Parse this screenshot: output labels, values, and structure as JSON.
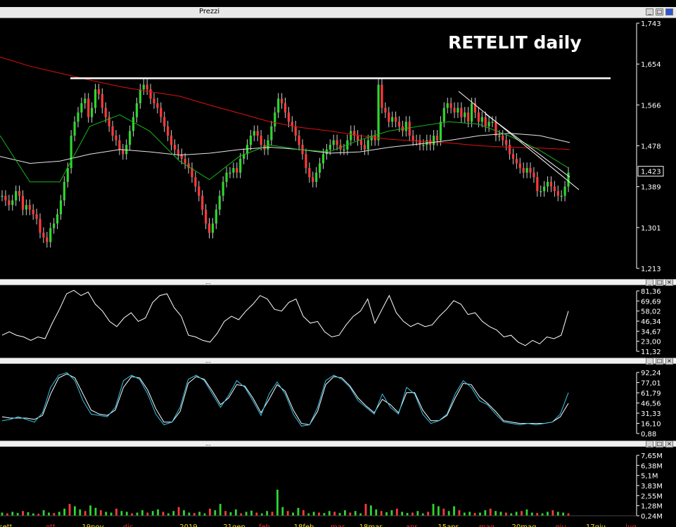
{
  "window": {
    "title": "Prezzi"
  },
  "chart_data": [
    {
      "type": "candlestick",
      "title": "RETELIT daily",
      "ylim": [
        1.213,
        1.743
      ],
      "yticks": [
        "1,743",
        "1,654",
        "1,566",
        "1,478",
        "1,389",
        "1,301",
        "1,213"
      ],
      "last_price": "1,423",
      "x_ticks": [
        "sett",
        "ott",
        "19nov",
        "dic",
        "2019",
        "21gen",
        "feb",
        "18feb",
        "mar",
        "18mar",
        "apr",
        "15apr",
        "mag",
        "20mag",
        "giu",
        "17giu",
        "lug"
      ],
      "x_ticks_red": [
        "ott",
        "dic",
        "feb",
        "mar",
        "apr",
        "mag",
        "giu",
        "lug"
      ],
      "resistance_line": 1.624,
      "series": [
        {
          "name": "close",
          "values": [
            1.37,
            1.36,
            1.35,
            1.36,
            1.38,
            1.37,
            1.34,
            1.35,
            1.34,
            1.33,
            1.32,
            1.29,
            1.28,
            1.27,
            1.3,
            1.31,
            1.33,
            1.36,
            1.4,
            1.43,
            1.5,
            1.53,
            1.55,
            1.57,
            1.58,
            1.54,
            1.56,
            1.6,
            1.59,
            1.56,
            1.54,
            1.52,
            1.5,
            1.49,
            1.47,
            1.46,
            1.48,
            1.51,
            1.54,
            1.57,
            1.6,
            1.61,
            1.6,
            1.58,
            1.57,
            1.56,
            1.54,
            1.52,
            1.5,
            1.48,
            1.47,
            1.46,
            1.45,
            1.44,
            1.43,
            1.41,
            1.39,
            1.37,
            1.34,
            1.31,
            1.29,
            1.31,
            1.34,
            1.37,
            1.4,
            1.42,
            1.42,
            1.43,
            1.42,
            1.45,
            1.46,
            1.48,
            1.5,
            1.51,
            1.5,
            1.48,
            1.47,
            1.49,
            1.52,
            1.55,
            1.58,
            1.57,
            1.55,
            1.53,
            1.52,
            1.5,
            1.48,
            1.46,
            1.43,
            1.41,
            1.4,
            1.42,
            1.44,
            1.46,
            1.47,
            1.48,
            1.49,
            1.48,
            1.47,
            1.47,
            1.49,
            1.51,
            1.5,
            1.49,
            1.48,
            1.47,
            1.49,
            1.5,
            1.49,
            1.61,
            1.56,
            1.55,
            1.53,
            1.54,
            1.53,
            1.52,
            1.51,
            1.53,
            1.5,
            1.49,
            1.49,
            1.48,
            1.48,
            1.49,
            1.48,
            1.5,
            1.49,
            1.53,
            1.56,
            1.57,
            1.56,
            1.55,
            1.56,
            1.54,
            1.55,
            1.53,
            1.57,
            1.55,
            1.53,
            1.54,
            1.52,
            1.53,
            1.53,
            1.5,
            1.5,
            1.49,
            1.48,
            1.46,
            1.45,
            1.44,
            1.43,
            1.42,
            1.43,
            1.42,
            1.41,
            1.38,
            1.38,
            1.39,
            1.4,
            1.39,
            1.38,
            1.37,
            1.37,
            1.39,
            1.42
          ]
        },
        {
          "name": "sma_long_red",
          "values": [
            1.67,
            1.65,
            1.635,
            1.62,
            1.606,
            1.595,
            1.585,
            1.566,
            1.548,
            1.53,
            1.518,
            1.51,
            1.5,
            1.492,
            1.488,
            1.484,
            1.478,
            1.475,
            1.473,
            1.47
          ]
        },
        {
          "name": "sma_mid_white",
          "values": [
            1.455,
            1.44,
            1.445,
            1.46,
            1.47,
            1.465,
            1.458,
            1.462,
            1.47,
            1.475,
            1.47,
            1.462,
            1.465,
            1.475,
            1.482,
            1.49,
            1.5,
            1.505,
            1.5,
            1.485
          ]
        },
        {
          "name": "sma_short_green",
          "values": [
            1.5,
            1.4,
            1.4,
            1.52,
            1.545,
            1.51,
            1.445,
            1.405,
            1.455,
            1.48,
            1.47,
            1.465,
            1.49,
            1.51,
            1.52,
            1.53,
            1.525,
            1.5,
            1.47,
            1.43
          ]
        }
      ]
    },
    {
      "type": "line",
      "title": "",
      "ylim": [
        11.32,
        81.36
      ],
      "yticks": [
        "81,36",
        "69,69",
        "58,02",
        "46,34",
        "34,67",
        "23,00",
        "11,32"
      ],
      "series": [
        {
          "name": "",
          "values": [
            30,
            34,
            30,
            28,
            24,
            28,
            26,
            44,
            60,
            78,
            82,
            76,
            80,
            66,
            58,
            46,
            40,
            50,
            56,
            46,
            50,
            68,
            76,
            78,
            62,
            52,
            30,
            28,
            24,
            22,
            32,
            46,
            52,
            48,
            58,
            66,
            76,
            72,
            60,
            58,
            68,
            72,
            52,
            44,
            46,
            34,
            28,
            30,
            42,
            52,
            58,
            72,
            44,
            60,
            76,
            56,
            46,
            40,
            44,
            40,
            42,
            52,
            60,
            70,
            66,
            54,
            56,
            46,
            40,
            36,
            28,
            30,
            22,
            18,
            24,
            20,
            28,
            26,
            30,
            58
          ]
        }
      ]
    },
    {
      "type": "line",
      "title": "",
      "ylim": [
        0.88,
        92.24
      ],
      "yticks": [
        "92,24",
        "77,01",
        "61,79",
        "46,56",
        "31,33",
        "16,10",
        "0,88"
      ],
      "series": [
        {
          "name": "",
          "values": [
            20,
            22,
            26,
            22,
            18,
            32,
            70,
            88,
            92,
            80,
            50,
            30,
            28,
            26,
            40,
            80,
            88,
            82,
            60,
            30,
            14,
            18,
            40,
            82,
            88,
            80,
            60,
            40,
            58,
            80,
            70,
            50,
            28,
            60,
            78,
            60,
            30,
            12,
            14,
            40,
            80,
            88,
            82,
            70,
            50,
            40,
            30,
            60,
            40,
            30,
            70,
            60,
            30,
            16,
            20,
            30,
            60,
            80,
            70,
            50,
            44,
            30,
            18,
            16,
            14,
            16,
            14,
            16,
            18,
            30,
            62
          ]
        },
        {
          "name": "",
          "values": [
            26,
            24,
            24,
            24,
            22,
            28,
            60,
            84,
            90,
            84,
            60,
            36,
            30,
            28,
            36,
            70,
            86,
            84,
            66,
            38,
            18,
            18,
            34,
            76,
            86,
            82,
            64,
            44,
            54,
            74,
            72,
            54,
            32,
            52,
            74,
            64,
            36,
            16,
            14,
            34,
            74,
            86,
            84,
            72,
            54,
            42,
            32,
            52,
            44,
            32,
            62,
            62,
            36,
            20,
            20,
            28,
            54,
            76,
            74,
            56,
            46,
            34,
            20,
            18,
            16,
            16,
            16,
            16,
            18,
            26,
            46
          ]
        }
      ]
    },
    {
      "type": "bar",
      "title": "",
      "ylim": [
        0,
        7650000
      ],
      "yticks": [
        "7,65M",
        "6,38M",
        "5,1M",
        "3,83M",
        "2,55M",
        "1,28M",
        "0,24M"
      ],
      "series": [
        {
          "name": "volume",
          "values": [
            400000,
            300000,
            500000,
            350000,
            600000,
            450000,
            300000,
            250000,
            700000,
            400000,
            350000,
            500000,
            900000,
            1500000,
            1200000,
            800000,
            600000,
            1300000,
            1000000,
            700000,
            500000,
            400000,
            900000,
            600000,
            500000,
            300000,
            400000,
            700000,
            400000,
            600000,
            800000,
            500000,
            300000,
            600000,
            1100000,
            700000,
            400000,
            350000,
            500000,
            300000,
            900000,
            700000,
            1500000,
            600000,
            450000,
            800000,
            300000,
            500000,
            650000,
            400000,
            300000,
            600000,
            500000,
            3300000,
            1100000,
            600000,
            400000,
            1000000,
            700000,
            300000,
            500000,
            400000,
            350000,
            600000,
            500000,
            350000,
            700000,
            400000,
            600000,
            300000,
            1500000,
            1300000,
            800000,
            600000,
            450000,
            700000,
            900000,
            500000,
            350000,
            400000,
            600000,
            300000,
            500000,
            1500000,
            1200000,
            900000,
            600000,
            1200000,
            700000,
            400000,
            500000,
            350000,
            400000,
            700000,
            900000,
            600000,
            500000,
            400000,
            300000,
            500000,
            600000,
            800000,
            400000,
            350000,
            300000,
            500000,
            700000,
            500000,
            400000,
            300000
          ]
        }
      ]
    }
  ]
}
